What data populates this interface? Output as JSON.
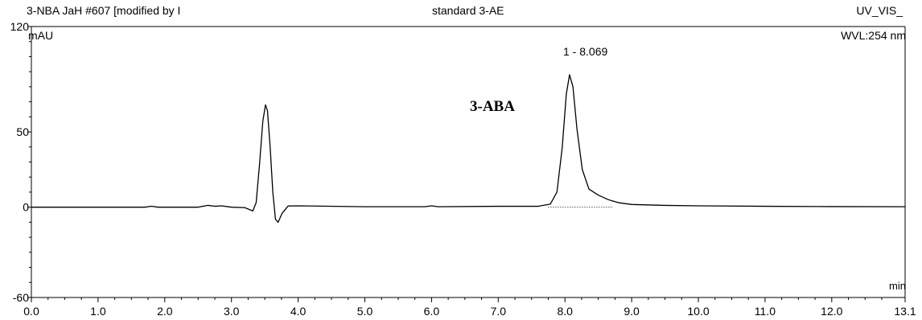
{
  "header": {
    "sample_title": "3-NBA JaH #607 [modified by I",
    "center_title": "standard 3-AE",
    "channel": "UV_VIS_"
  },
  "labels": {
    "y_unit": "mAU",
    "wavelength": "WVL:254 nm",
    "x_unit": "min",
    "compound_annotation": "3-ABA",
    "peak_label": "1 - 8.069"
  },
  "colors": {
    "trace": "#000000",
    "background": "#ffffff",
    "axis": "#000000"
  },
  "chart_data": {
    "type": "line",
    "title": "",
    "xlabel": "min",
    "ylabel": "mAU",
    "xlim": [
      0.0,
      13.1
    ],
    "ylim": [
      -60,
      120
    ],
    "x_ticks": [
      0.0,
      1.0,
      2.0,
      3.0,
      4.0,
      5.0,
      6.0,
      7.0,
      8.0,
      9.0,
      10.0,
      11.0,
      12.0,
      13.1
    ],
    "x_tick_labels": [
      "0.0",
      "1.0",
      "2.0",
      "3.0",
      "4.0",
      "5.0",
      "6.0",
      "7.0",
      "8.0",
      "9.0",
      "10.0",
      "11.0",
      "12.0",
      "13.1"
    ],
    "y_ticks": [
      -60,
      0,
      50,
      120
    ],
    "y_tick_labels": [
      "-60",
      "0",
      "50",
      "120"
    ],
    "grid": false,
    "series": [
      {
        "x": [
          0.0,
          1.0,
          1.7,
          1.8,
          1.9,
          2.5,
          2.65,
          2.75,
          2.85,
          3.0,
          3.2,
          3.32,
          3.37,
          3.42,
          3.47,
          3.51,
          3.54,
          3.58,
          3.62,
          3.66,
          3.7,
          3.76,
          3.85,
          4.0,
          5.0,
          5.9,
          6.0,
          6.1,
          7.0,
          7.6,
          7.78,
          7.88,
          7.96,
          8.02,
          8.069,
          8.12,
          8.18,
          8.26,
          8.36,
          8.5,
          8.65,
          8.8,
          9.0,
          9.5,
          10.0,
          11.0,
          12.0,
          13.1
        ],
        "y": [
          0,
          0,
          0,
          0.6,
          0,
          0,
          1.2,
          0.6,
          0.9,
          0,
          -0.3,
          -2.5,
          3,
          28,
          57,
          68,
          64,
          40,
          10,
          -8,
          -10,
          -4,
          0.8,
          0.9,
          0.3,
          0.3,
          0.9,
          0.3,
          0.6,
          0.6,
          2,
          10,
          40,
          75,
          88,
          80,
          52,
          25,
          12,
          8,
          5,
          3,
          1.8,
          1.2,
          0.9,
          0.6,
          0.4,
          0.3
        ]
      }
    ],
    "peaks": [
      {
        "number": 1,
        "retention_time": 8.069,
        "height": 88
      }
    ]
  }
}
